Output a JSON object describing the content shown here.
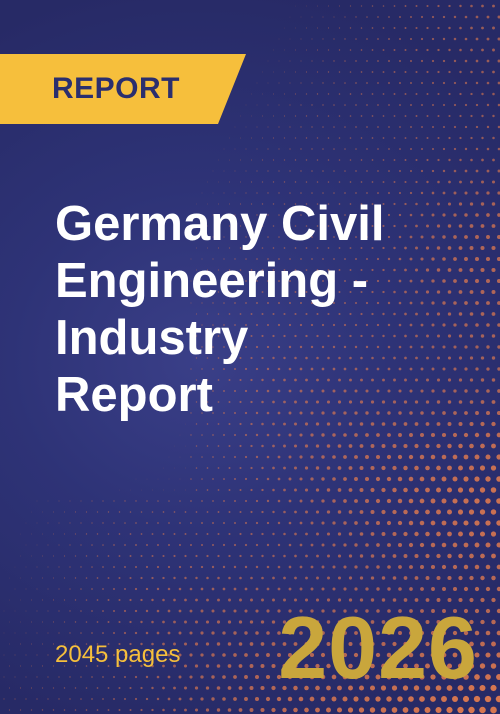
{
  "badge": {
    "label": "REPORT"
  },
  "title": {
    "lines": [
      "Germany Civil",
      "Engineering -",
      "Industry",
      "Report"
    ]
  },
  "footer": {
    "pages": "2045 pages",
    "year": "2026"
  },
  "colors": {
    "background": "#2b2f6e",
    "badge": "#f6bf3c",
    "dots": "#e07a4f",
    "pages_text": "#f6bf3c",
    "year_text": "#c9a63c",
    "title_text": "#ffffff"
  }
}
